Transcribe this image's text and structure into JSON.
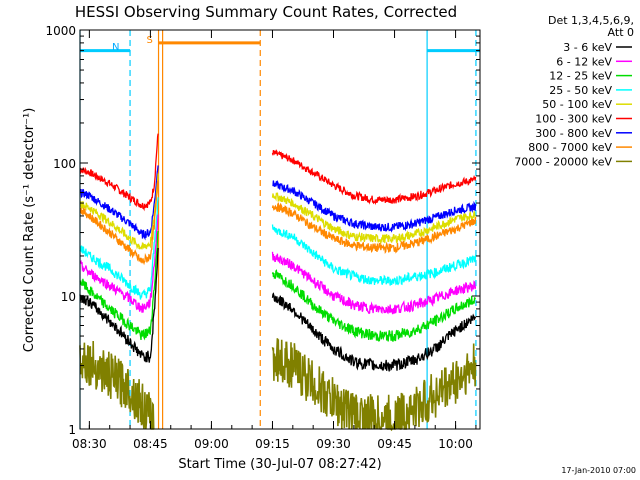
{
  "chart_data": {
    "type": "line",
    "title": "HESSI Observing Summary Count Rates, Corrected",
    "xlabel": "Start Time (30-Jul-07 08:27:42)",
    "ylabel": "Corrected Count Rate (s⁻¹ detector⁻¹)",
    "y_scale": "log",
    "ylim": [
      1,
      1000
    ],
    "xlim": [
      "08:27:42",
      "10:06:00"
    ],
    "x_ticks": [
      "08:30",
      "08:45",
      "09:00",
      "09:15",
      "09:30",
      "09:45",
      "10:00"
    ],
    "y_ticks": [
      "1",
      "10",
      "100",
      "1000"
    ],
    "grid": false,
    "legend": {
      "placement": "right",
      "header": [
        "Det 1,3,4,5,6,9,",
        "Att 0"
      ],
      "entries": [
        {
          "label": "3 - 6 keV",
          "color": "#000000"
        },
        {
          "label": "6 - 12 keV",
          "color": "#ff00ff"
        },
        {
          "label": "12 - 25 keV",
          "color": "#00dd00"
        },
        {
          "label": "25 - 50 keV",
          "color": "#00ffff"
        },
        {
          "label": "50 - 100 keV",
          "color": "#dddd00"
        },
        {
          "label": "100 - 300 keV",
          "color": "#ff0000"
        },
        {
          "label": "300 - 800 keV",
          "color": "#0000ff"
        },
        {
          "label": "800 - 7000 keV",
          "color": "#ff8800"
        },
        {
          "label": "7000 - 20000 keV",
          "color": "#808000"
        }
      ]
    },
    "annotations": [
      {
        "text": "N",
        "color": "#00aaff"
      },
      {
        "text": "S",
        "color": "#ff8800"
      }
    ],
    "series": [
      {
        "name": "100 - 300 keV",
        "color": "#ff0000",
        "segments": [
          {
            "x": [
              "08:27:42",
              "08:30",
              "08:35",
              "08:40",
              "08:43",
              "08:45",
              "08:46",
              "08:46:30",
              "08:47"
            ],
            "y": [
              90,
              85,
              70,
              55,
              48,
              50,
              70,
              120,
              180
            ]
          },
          {
            "x": [
              "09:15",
              "09:20",
              "09:25",
              "09:30",
              "09:35",
              "09:40",
              "09:45",
              "09:50",
              "09:55",
              "10:00",
              "10:05"
            ],
            "y": [
              120,
              105,
              85,
              68,
              57,
              53,
              53,
              56,
              62,
              70,
              75
            ]
          }
        ]
      },
      {
        "name": "300 - 800 keV",
        "color": "#0000ff",
        "segments": [
          {
            "x": [
              "08:27:42",
              "08:30",
              "08:35",
              "08:40",
              "08:43",
              "08:45",
              "08:46",
              "08:47"
            ],
            "y": [
              60,
              57,
              45,
              35,
              29,
              30,
              50,
              110
            ]
          },
          {
            "x": [
              "09:15",
              "09:20",
              "09:25",
              "09:30",
              "09:35",
              "09:40",
              "09:45",
              "09:50",
              "09:55",
              "10:00",
              "10:05"
            ],
            "y": [
              70,
              62,
              50,
              40,
              35,
              33,
              33,
              35,
              39,
              44,
              47
            ]
          }
        ]
      },
      {
        "name": "50 - 100 keV",
        "color": "#dddd00",
        "segments": [
          {
            "x": [
              "08:27:42",
              "08:30",
              "08:35",
              "08:40",
              "08:43",
              "08:45",
              "08:46",
              "08:47"
            ],
            "y": [
              50,
              46,
              36,
              27,
              23,
              25,
              40,
              90
            ]
          },
          {
            "x": [
              "09:15",
              "09:20",
              "09:25",
              "09:30",
              "09:35",
              "09:40",
              "09:45",
              "09:50",
              "09:55",
              "10:00",
              "10:05"
            ],
            "y": [
              58,
              50,
              40,
              32,
              28,
              27,
              27,
              29,
              33,
              38,
              41
            ]
          }
        ]
      },
      {
        "name": "800 - 7000 keV",
        "color": "#ff8800",
        "segments": [
          {
            "x": [
              "08:27:42",
              "08:30",
              "08:35",
              "08:40",
              "08:43",
              "08:45",
              "08:46",
              "08:47"
            ],
            "y": [
              45,
              40,
              30,
              22,
              18,
              20,
              35,
              80
            ]
          },
          {
            "x": [
              "09:15",
              "09:20",
              "09:25",
              "09:30",
              "09:35",
              "09:40",
              "09:45",
              "09:50",
              "09:55",
              "10:00",
              "10:05"
            ],
            "y": [
              48,
              42,
              33,
              27,
              24,
              23,
              23,
              25,
              28,
              32,
              37
            ]
          }
        ]
      },
      {
        "name": "25 - 50 keV",
        "color": "#00ffff",
        "segments": [
          {
            "x": [
              "08:27:42",
              "08:30",
              "08:35",
              "08:40",
              "08:43",
              "08:45",
              "08:46",
              "08:47"
            ],
            "y": [
              23,
              20,
              16,
              12,
              10,
              11,
              25,
              60
            ]
          },
          {
            "x": [
              "09:15",
              "09:20",
              "09:25",
              "09:30",
              "09:35",
              "09:40",
              "09:45",
              "09:50",
              "09:55",
              "10:00",
              "10:05"
            ],
            "y": [
              32,
              28,
              21,
              16,
              14,
              13,
              13,
              14,
              15,
              17,
              19
            ]
          }
        ]
      },
      {
        "name": "6 - 12 keV",
        "color": "#ff00ff",
        "segments": [
          {
            "x": [
              "08:27:42",
              "08:30",
              "08:35",
              "08:40",
              "08:43",
              "08:45",
              "08:46",
              "08:47"
            ],
            "y": [
              17,
              15,
              12,
              9.5,
              8,
              9,
              18,
              45
            ]
          },
          {
            "x": [
              "09:15",
              "09:20",
              "09:25",
              "09:30",
              "09:35",
              "09:40",
              "09:45",
              "09:50",
              "09:55",
              "10:00",
              "10:05"
            ],
            "y": [
              20,
              17,
              13,
              10,
              8.5,
              8,
              8,
              8.5,
              9.5,
              11,
              12
            ]
          }
        ]
      },
      {
        "name": "12 - 25 keV",
        "color": "#00dd00",
        "segments": [
          {
            "x": [
              "08:27:42",
              "08:30",
              "08:35",
              "08:40",
              "08:43",
              "08:45",
              "08:46",
              "08:47"
            ],
            "y": [
              13,
              11,
              8,
              6,
              5,
              5.5,
              12,
              35
            ]
          },
          {
            "x": [
              "09:15",
              "09:20",
              "09:25",
              "09:30",
              "09:35",
              "09:40",
              "09:45",
              "09:50",
              "09:55",
              "10:00",
              "10:05"
            ],
            "y": [
              15,
              12,
              8.5,
              6.5,
              5.5,
              5,
              5,
              5.5,
              6.5,
              8,
              9.5
            ]
          }
        ]
      },
      {
        "name": "3 - 6 keV",
        "color": "#000000",
        "segments": [
          {
            "x": [
              "08:27:42",
              "08:30",
              "08:35",
              "08:40",
              "08:43",
              "08:45",
              "08:46",
              "08:47"
            ],
            "y": [
              10,
              9,
              6.5,
              4.5,
              3.5,
              3.5,
              8,
              25
            ]
          },
          {
            "x": [
              "09:15",
              "09:20",
              "09:25",
              "09:30",
              "09:35",
              "09:40",
              "09:45",
              "09:50",
              "09:55",
              "10:00",
              "10:05"
            ],
            "y": [
              10,
              8,
              5.5,
              4,
              3.2,
              3,
              3,
              3.3,
              4,
              5.5,
              7
            ]
          }
        ]
      },
      {
        "name": "7000 - 20000 keV",
        "color": "#808000",
        "segments": [
          {
            "x": [
              "08:27:42",
              "08:30",
              "08:35",
              "08:40",
              "08:43",
              "08:45",
              "08:46"
            ],
            "y": [
              3.5,
              3.2,
              2.5,
              2,
              1.5,
              1.2,
              1.1
            ]
          },
          {
            "x": [
              "09:15",
              "09:20",
              "09:25",
              "09:30",
              "09:35",
              "09:40",
              "09:45",
              "09:50",
              "09:55",
              "10:00",
              "10:05"
            ],
            "y": [
              3.5,
              3,
              2.2,
              1.6,
              1.3,
              1.2,
              1.2,
              1.4,
              1.8,
              2.3,
              3
            ]
          }
        ]
      }
    ],
    "flags": [
      {
        "name": "night",
        "label": "N",
        "color": "#00ccff",
        "intervals": [
          [
            "08:27:42",
            "08:40"
          ],
          [
            "09:53",
            "10:06"
          ]
        ],
        "level": 700
      },
      {
        "name": "saa",
        "label": "S",
        "color": "#ff8800",
        "intervals": [
          [
            "08:47",
            "09:12"
          ]
        ],
        "level": 800
      }
    ],
    "vertical_markers": [
      {
        "time": "08:27:42",
        "color": "#00ccff",
        "style": "solid"
      },
      {
        "time": "08:40",
        "color": "#00ccff",
        "style": "dashed"
      },
      {
        "time": "08:47",
        "color": "#ff8800",
        "style": "solid"
      },
      {
        "time": "08:48",
        "color": "#ff8800",
        "style": "solid"
      },
      {
        "time": "09:12",
        "color": "#ff8800",
        "style": "dashed"
      },
      {
        "time": "09:53",
        "color": "#00ccff",
        "style": "solid"
      },
      {
        "time": "10:05",
        "color": "#00ccff",
        "style": "dashed"
      }
    ]
  },
  "footer": {
    "timestamp": "17-Jan-2010 07:00"
  }
}
